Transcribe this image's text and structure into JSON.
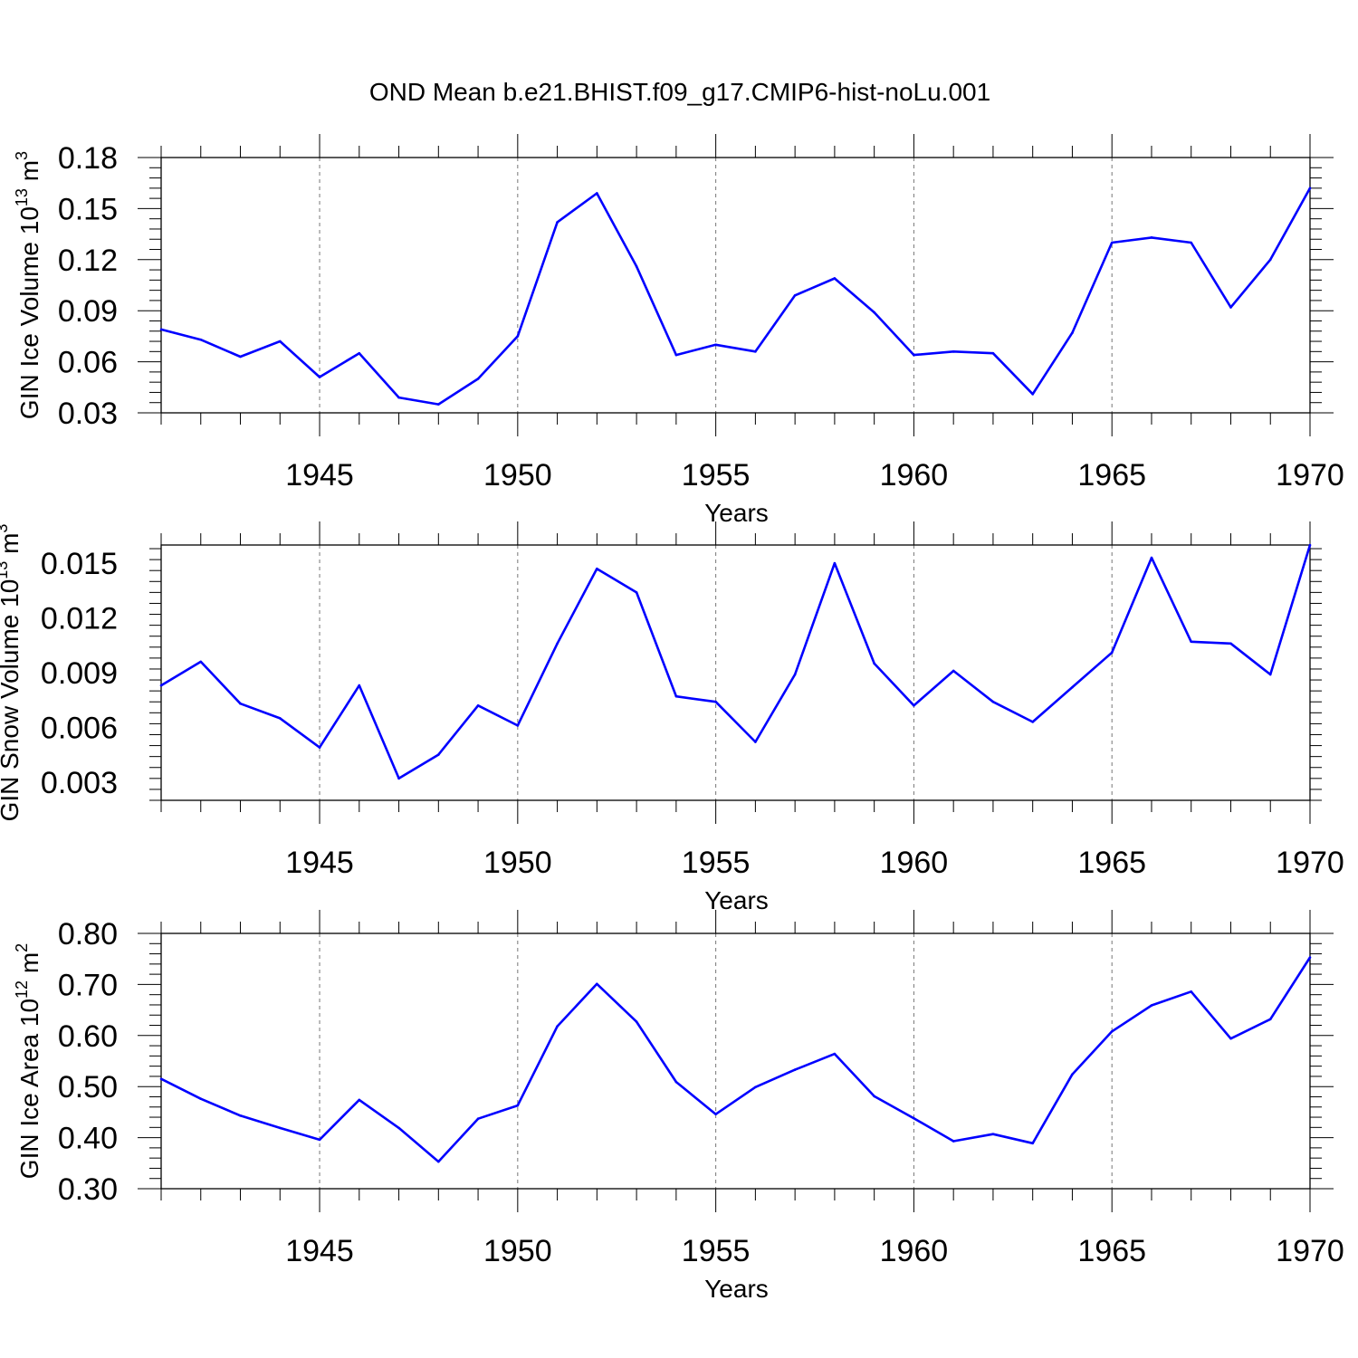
{
  "title": "OND Mean b.e21.BHIST.f09_g17.CMIP6-hist-noLu.001",
  "colors": {
    "series": "#0000ff",
    "axis": "#000000",
    "grid": "#777777"
  },
  "chart_data": [
    {
      "type": "line",
      "title": "OND Mean b.e21.BHIST.f09_g17.CMIP6-hist-noLu.001",
      "xlabel": "Years",
      "ylabel": {
        "main": "GIN Ice Volume 10",
        "sup1": "13",
        "mid": " m",
        "sup2": "3"
      },
      "xlim": [
        1941,
        1970
      ],
      "ylim": [
        0.03,
        0.18
      ],
      "yticks": [
        0.03,
        0.06,
        0.09,
        0.12,
        0.15,
        0.18
      ],
      "ytick_labels": [
        "0.03",
        "0.06",
        "0.09",
        "0.12",
        "0.15",
        "0.18"
      ],
      "xticks": [
        1945,
        1950,
        1955,
        1960,
        1965,
        1970
      ],
      "xtick_labels": [
        "1945",
        "1950",
        "1955",
        "1960",
        "1965",
        "1970"
      ],
      "x": [
        1941,
        1942,
        1943,
        1944,
        1945,
        1946,
        1947,
        1948,
        1949,
        1950,
        1951,
        1952,
        1953,
        1954,
        1955,
        1956,
        1957,
        1958,
        1959,
        1960,
        1961,
        1962,
        1963,
        1964,
        1965,
        1966,
        1967,
        1968,
        1969,
        1970
      ],
      "y": [
        0.079,
        0.073,
        0.063,
        0.072,
        0.051,
        0.065,
        0.039,
        0.035,
        0.05,
        0.075,
        0.142,
        0.159,
        0.116,
        0.064,
        0.07,
        0.066,
        0.099,
        0.109,
        0.089,
        0.064,
        0.066,
        0.065,
        0.041,
        0.077,
        0.13,
        0.133,
        0.13,
        0.092,
        0.12,
        0.162
      ],
      "grid": "vertical dashed at major x ticks"
    },
    {
      "type": "line",
      "xlabel": "Years",
      "ylabel": {
        "main": "GIN Snow Volume 10",
        "sup1": "13",
        "mid": " m",
        "sup2": "3"
      },
      "xlim": [
        1941,
        1970
      ],
      "ylim": [
        0.002,
        0.016
      ],
      "yticks": [
        0.003,
        0.006,
        0.009,
        0.012,
        0.015
      ],
      "ytick_labels": [
        "0.003",
        "0.006",
        "0.009",
        "0.012",
        "0.015"
      ],
      "xticks": [
        1945,
        1950,
        1955,
        1960,
        1965,
        1970
      ],
      "xtick_labels": [
        "1945",
        "1950",
        "1955",
        "1960",
        "1965",
        "1970"
      ],
      "x": [
        1941,
        1942,
        1943,
        1944,
        1945,
        1946,
        1947,
        1948,
        1949,
        1950,
        1951,
        1952,
        1953,
        1954,
        1955,
        1956,
        1957,
        1958,
        1959,
        1960,
        1961,
        1962,
        1963,
        1964,
        1965,
        1966,
        1967,
        1968,
        1969,
        1970
      ],
      "y": [
        0.0083,
        0.0096,
        0.0073,
        0.0065,
        0.0049,
        0.0083,
        0.0032,
        0.0045,
        0.0072,
        0.0061,
        0.0106,
        0.0147,
        0.0134,
        0.0077,
        0.0074,
        0.0052,
        0.0089,
        0.015,
        0.0095,
        0.0072,
        0.0091,
        0.0074,
        0.0063,
        0.0082,
        0.0101,
        0.0153,
        0.0107,
        0.0106,
        0.0089,
        0.016
      ],
      "grid": "vertical dashed at major x ticks"
    },
    {
      "type": "line",
      "xlabel": "Years",
      "ylabel": {
        "main": "GIN Ice Area 10",
        "sup1": "12",
        "mid": " m",
        "sup2": "2"
      },
      "xlim": [
        1941,
        1970
      ],
      "ylim": [
        0.3,
        0.8
      ],
      "yticks": [
        0.3,
        0.4,
        0.5,
        0.6,
        0.7,
        0.8
      ],
      "ytick_labels": [
        "0.30",
        "0.40",
        "0.50",
        "0.60",
        "0.70",
        "0.80"
      ],
      "xticks": [
        1945,
        1950,
        1955,
        1960,
        1965,
        1970
      ],
      "xtick_labels": [
        "1945",
        "1950",
        "1955",
        "1960",
        "1965",
        "1970"
      ],
      "x": [
        1941,
        1942,
        1943,
        1944,
        1945,
        1946,
        1947,
        1948,
        1949,
        1950,
        1951,
        1952,
        1953,
        1954,
        1955,
        1956,
        1957,
        1958,
        1959,
        1960,
        1961,
        1962,
        1963,
        1964,
        1965,
        1966,
        1967,
        1968,
        1969,
        1970
      ],
      "y": [
        0.515,
        0.476,
        0.443,
        0.419,
        0.396,
        0.474,
        0.419,
        0.353,
        0.437,
        0.463,
        0.618,
        0.701,
        0.627,
        0.509,
        0.446,
        0.499,
        0.533,
        0.564,
        0.481,
        0.438,
        0.393,
        0.407,
        0.389,
        0.524,
        0.608,
        0.659,
        0.686,
        0.594,
        0.632,
        0.753
      ],
      "grid": "vertical dashed at major x ticks"
    }
  ]
}
